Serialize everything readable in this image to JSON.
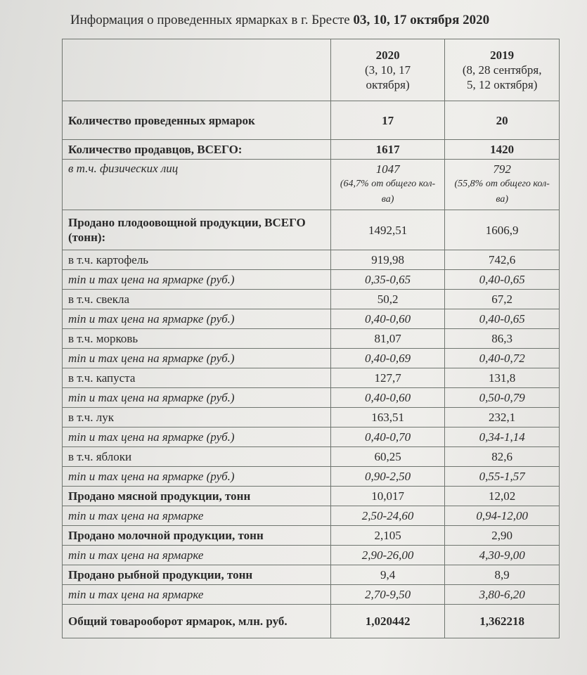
{
  "title": {
    "text": "Информация о проведенных ярмарках в г. Бресте",
    "dates": "03, 10, 17 октября 2020"
  },
  "header": {
    "col2020": {
      "year": "2020",
      "dates1": "(3, 10, 17",
      "dates2": "октября)"
    },
    "col2019": {
      "year": "2019",
      "dates1": "(8, 28 сентября,",
      "dates2": "5, 12 октября)"
    }
  },
  "rows": [
    {
      "label": "Количество проведенных ярмарок",
      "v2020": "17",
      "v2019": "20",
      "style": "bold"
    },
    {
      "label": "Количество продавцов, ВСЕГО:",
      "v2020": "1617",
      "v2019": "1420",
      "style": "bold"
    },
    {
      "label": "в т.ч. физических лиц",
      "v2020": "1047",
      "v2019": "792",
      "note2020": "(64,7% от общего кол-ва)",
      "note2019": "(55,8% от общего кол-ва)",
      "style": "italic"
    },
    {
      "label": "Продано плодоовощной продукции, ВСЕГО (тонн):",
      "v2020": "1492,51",
      "v2019": "1606,9",
      "style": "bold",
      "numplain": true
    },
    {
      "label": "в т.ч. картофель",
      "v2020": "919,98",
      "v2019": "742,6",
      "style": "normal"
    },
    {
      "label": "min и max цена на ярмарке (руб.)",
      "v2020": "0,35-0,65",
      "v2019": "0,40-0,65",
      "style": "italic"
    },
    {
      "label": "в т.ч. свекла",
      "v2020": "50,2",
      "v2019": "67,2",
      "style": "normal"
    },
    {
      "label": "min и max цена на ярмарке (руб.)",
      "v2020": "0,40-0,60",
      "v2019": "0,40-0,65",
      "style": "italic"
    },
    {
      "label": "в т.ч. морковь",
      "v2020": "81,07",
      "v2019": "86,3",
      "style": "normal"
    },
    {
      "label": "min и max цена на ярмарке (руб.)",
      "v2020": "0,40-0,69",
      "v2019": "0,40-0,72",
      "style": "italic"
    },
    {
      "label": "в т.ч. капуста",
      "v2020": "127,7",
      "v2019": "131,8",
      "style": "normal"
    },
    {
      "label": "min и max цена на ярмарке (руб.)",
      "v2020": "0,40-0,60",
      "v2019": "0,50-0,79",
      "style": "italic"
    },
    {
      "label": "в т.ч. лук",
      "v2020": "163,51",
      "v2019": "232,1",
      "style": "normal"
    },
    {
      "label": "min и max цена на ярмарке (руб.)",
      "v2020": "0,40-0,70",
      "v2019": "0,34-1,14",
      "style": "italic"
    },
    {
      "label": "в т.ч. яблоки",
      "v2020": "60,25",
      "v2019": "82,6",
      "style": "normal"
    },
    {
      "label": "min и max цена на ярмарке (руб.)",
      "v2020": "0,90-2,50",
      "v2019": "0,55-1,57",
      "style": "italic"
    },
    {
      "label": "Продано мясной продукции, тонн",
      "v2020": "10,017",
      "v2019": "12,02",
      "style": "bold",
      "numplain": true
    },
    {
      "label": "min и max цена на ярмарке",
      "v2020": "2,50-24,60",
      "v2019": "0,94-12,00",
      "style": "italic"
    },
    {
      "label": "Продано молочной продукции, тонн",
      "v2020": "2,105",
      "v2019": "2,90",
      "style": "bold",
      "numplain": true
    },
    {
      "label": "min и max цена на ярмарке",
      "v2020": "2,90-26,00",
      "v2019": "4,30-9,00",
      "style": "italic"
    },
    {
      "label": "Продано рыбной продукции, тонн",
      "v2020": "9,4",
      "v2019": "8,9",
      "style": "bold",
      "numplain": true
    },
    {
      "label": "min и max цена на ярмарке",
      "v2020": "2,70-9,50",
      "v2019": "3,80-6,20",
      "style": "italic"
    },
    {
      "label": "Общий товарооборот ярмарок, млн. руб.",
      "v2020": "1,020442",
      "v2019": "1,362218",
      "style": "bold"
    }
  ]
}
